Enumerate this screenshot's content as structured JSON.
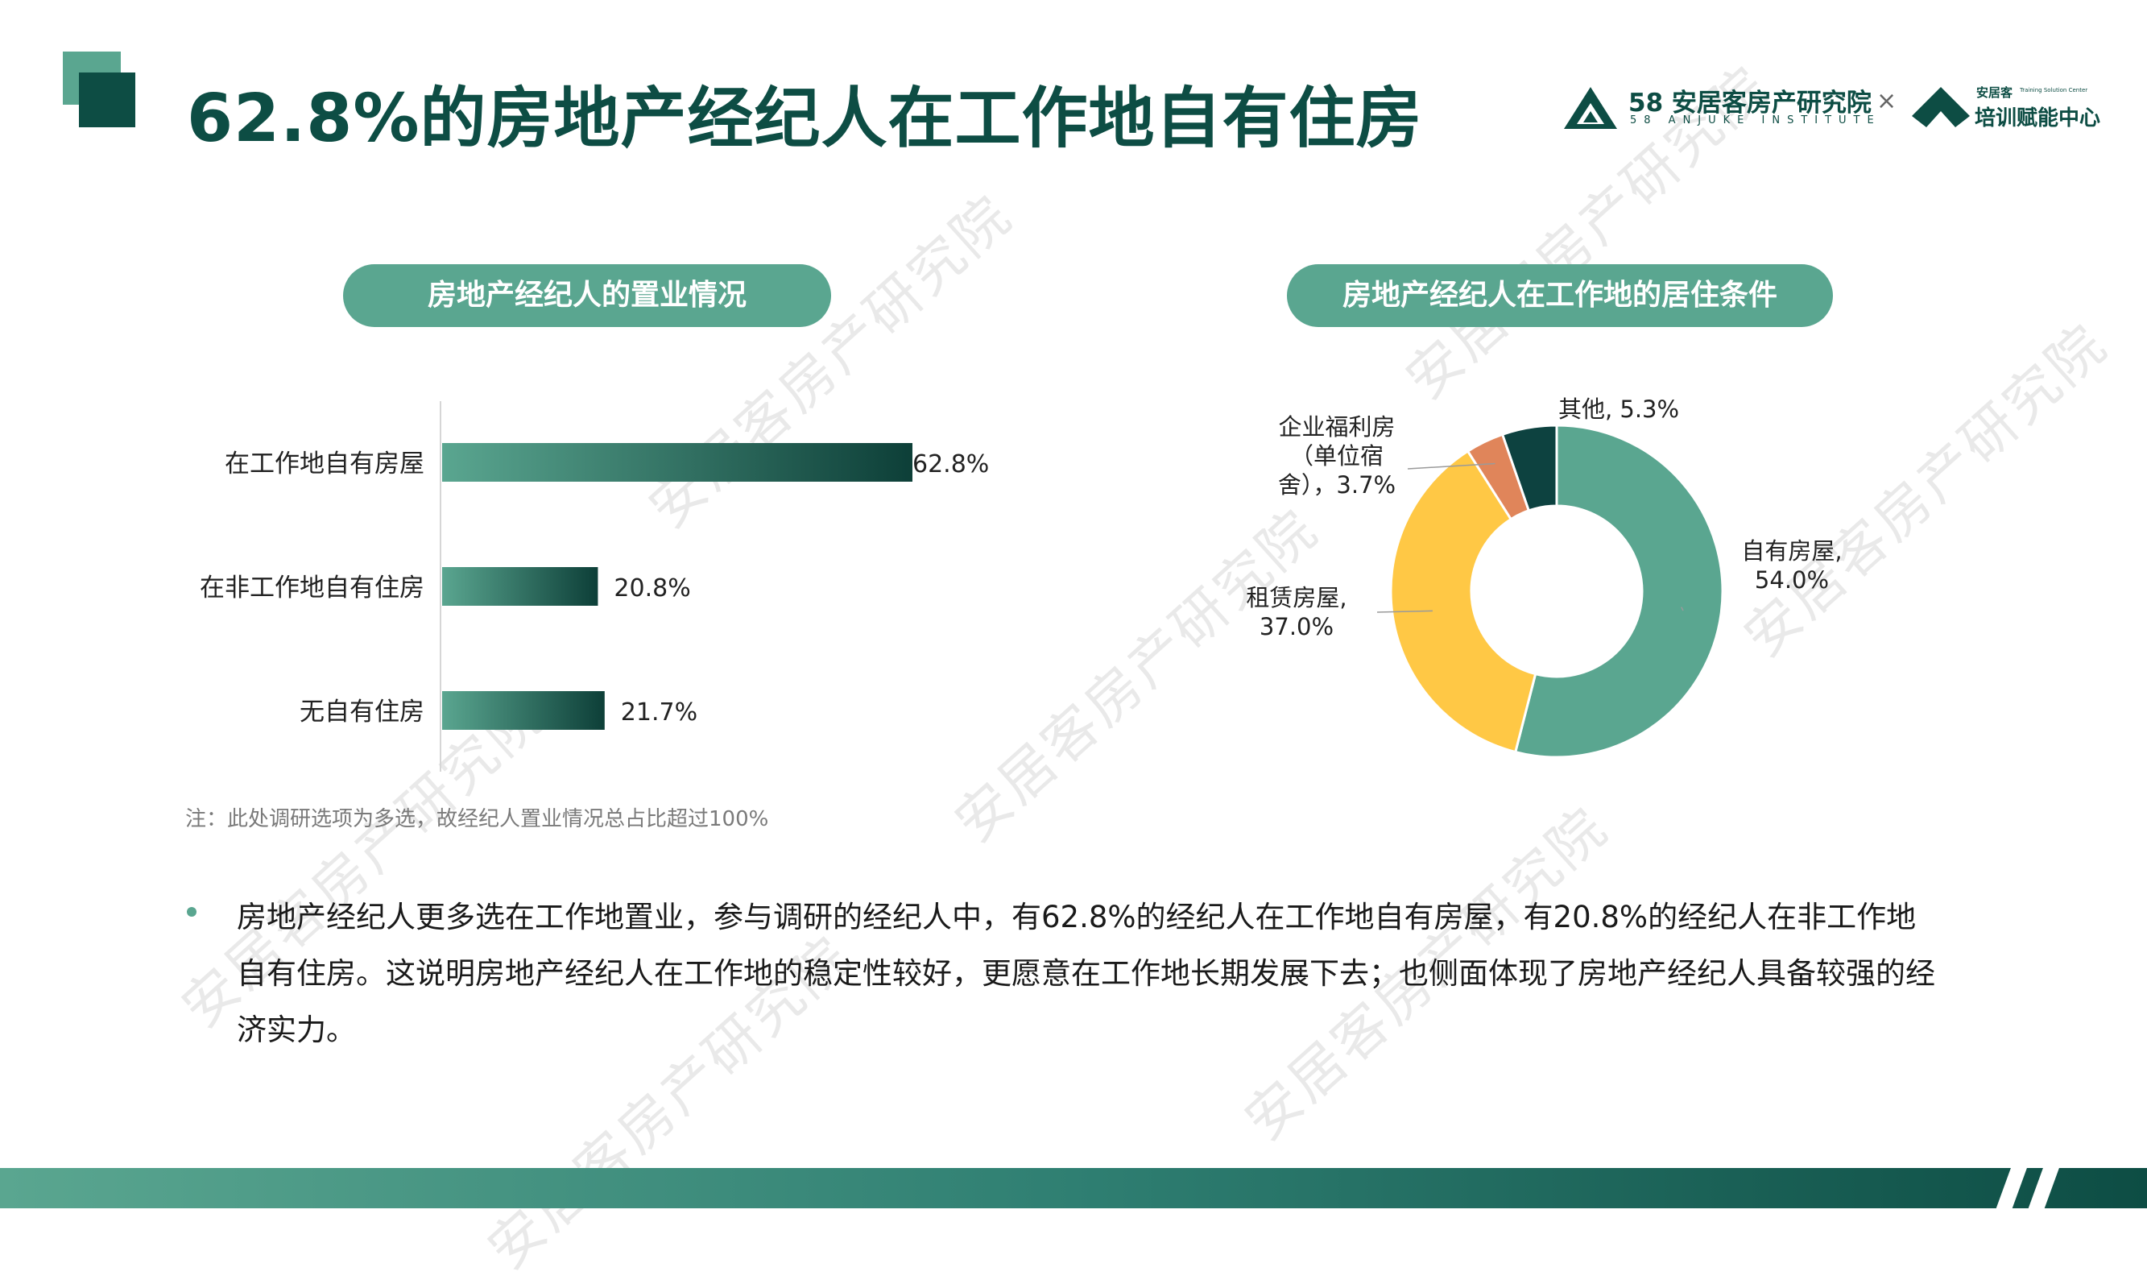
{
  "page_title": "62.8%的房地产经纪人在工作地自有住房",
  "logos": {
    "anjuke_institute_cn": "58 安居客房产研究院",
    "anjuke_institute_en": "58 ANJUKE INSTITUTE",
    "times": "×",
    "training_small": "安居客",
    "training_tiny": "Training Solution Center",
    "training_main": "培训赋能中心"
  },
  "watermark_text": "安居客房产研究院",
  "left_chart_title": "房地产经纪人的置业情况",
  "right_chart_title": "房地产经纪人在工作地的居住条件",
  "chart_data": [
    {
      "type": "bar",
      "orientation": "horizontal",
      "categories": [
        "在工作地自有房屋",
        "在非工作地自有住房",
        "无自有住房"
      ],
      "values": [
        62.8,
        20.8,
        21.7
      ],
      "value_labels": [
        "62.8%",
        "20.8%",
        "21.7%"
      ],
      "unit": "%",
      "xlim": [
        0,
        100
      ],
      "grid": false,
      "colors": {
        "start": "#5aa690",
        "end": "#0d3f38"
      }
    },
    {
      "type": "pie",
      "style": "donut",
      "slices": [
        {
          "name": "自有房屋",
          "value": 54.0,
          "label": "自有房屋,\n54.0%",
          "color": "#5aa690"
        },
        {
          "name": "租赁房屋",
          "value": 37.0,
          "label": "租赁房屋,\n37.0%",
          "color": "#ffc845"
        },
        {
          "name": "企业福利房（单位宿舍）",
          "value": 3.7,
          "label": "企业福利房\n（单位宿\n舍），3.7%",
          "color": "#e0855a"
        },
        {
          "name": "其他",
          "value": 5.3,
          "label": "其他, 5.3%",
          "color": "#0d4240"
        }
      ]
    }
  ],
  "note": "注：此处调研选项为多选，故经纪人置业情况总占比超过100%",
  "summary": "房地产经纪人更多选在工作地置业，参与调研的经纪人中，有62.8%的经纪人在工作地自有房屋，有20.8%的经纪人在非工作地自有住房。这说明房地产经纪人在工作地的稳定性较好，更愿意在工作地长期发展下去；也侧面体现了房地产经纪人具备较强的经济实力。",
  "colors": {
    "brand_dark": "#0d4d44",
    "brand_light": "#5aa690"
  }
}
